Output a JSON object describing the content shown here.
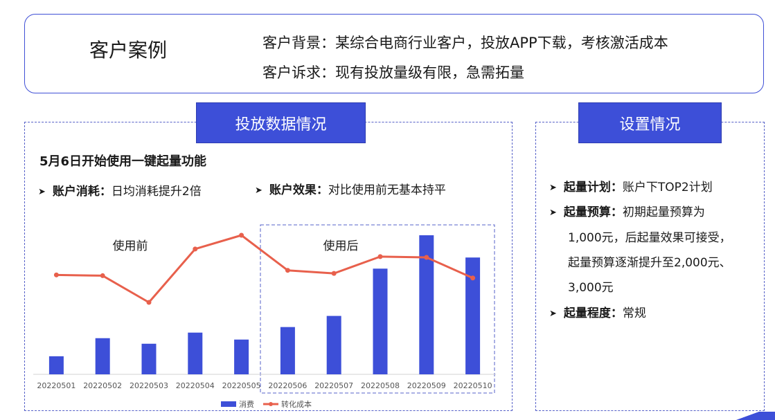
{
  "case": {
    "title": "客户案例",
    "background": "客户背景：某综合电商行业客户，投放APP下载，考核激活成本",
    "demand": "客户诉求：现有投放量级有限，急需拓量"
  },
  "left_panel": {
    "tab": "投放数据情况",
    "subhead": "5月6日开始使用一键起量功能",
    "spend_label": "账户消耗：",
    "spend_text": "日均消耗提升2倍",
    "effect_label": "账户效果：",
    "effect_text": "对比使用前无基本持平",
    "before_label": "使用前",
    "after_label": "使用后"
  },
  "right_panel": {
    "tab": "设置情况",
    "plan_label": "起量计划：",
    "plan_text": "账户下TOP2计划",
    "budget_label": "起量预算：",
    "budget_text_1": "初期起量预算为",
    "budget_text_2": "1,000元，后起量效果可接受，",
    "budget_text_3": "起量预算逐渐提升至2,000元、",
    "budget_text_4": "3,000元",
    "level_label": "起量程度：",
    "level_text": "常规"
  },
  "chart_data": {
    "type": "bar",
    "categories": [
      "20220501",
      "20220502",
      "20220503",
      "20220504",
      "20220505",
      "20220506",
      "20220507",
      "20220508",
      "20220509",
      "20220510"
    ],
    "series": [
      {
        "name": "消费",
        "kind": "bar",
        "color": "#3d4fd8",
        "values": [
          13,
          26,
          22,
          30,
          25,
          34,
          42,
          76,
          100,
          84
        ]
      },
      {
        "name": "转化成本",
        "kind": "line",
        "color": "#e8604c",
        "values": [
          70,
          69.5,
          52,
          87,
          96,
          73,
          71,
          82,
          81.5,
          68
        ]
      }
    ],
    "ylim": [
      0,
      100
    ],
    "legend": "bottom-center",
    "grid": false
  }
}
